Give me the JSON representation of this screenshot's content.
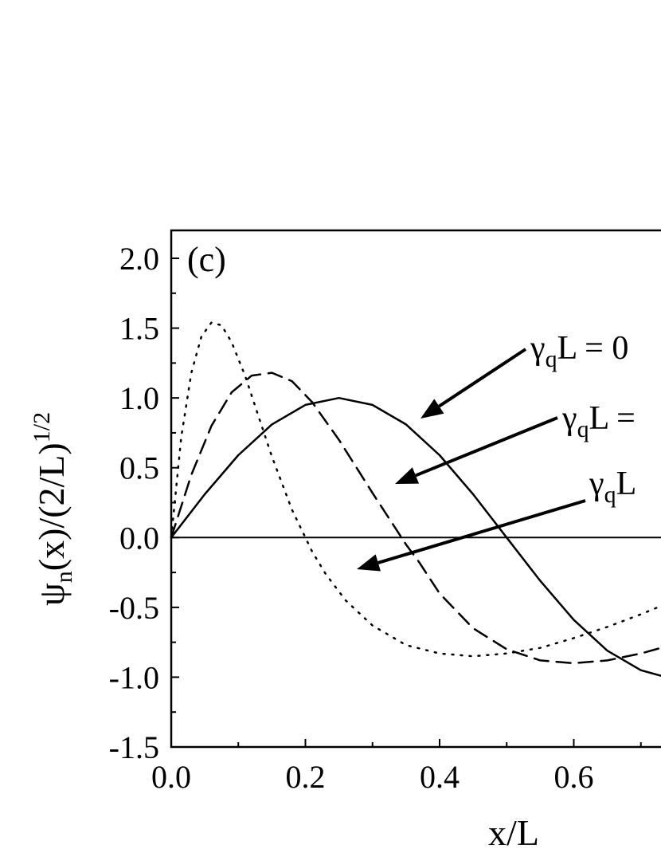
{
  "chart_data": {
    "type": "line",
    "panel_label": "(c)",
    "xlabel": "x/L",
    "ylabel": {
      "psi": "ψ",
      "sub": "n",
      "body": "(x)/(2/L)",
      "sup": "1/2"
    },
    "xlim": [
      0,
      0.73
    ],
    "ylim": [
      -1.5,
      2.2
    ],
    "x_ticks": [
      "0.0",
      "0.2",
      "0.4",
      "0.6"
    ],
    "y_ticks": [
      "-1.5",
      "-1.0",
      "-0.5",
      "0.0",
      "0.5",
      "1.0",
      "1.5",
      "2.0"
    ],
    "zero_line": true,
    "series": [
      {
        "style": "solid",
        "x": [
          0,
          0.05,
          0.1,
          0.15,
          0.2,
          0.25,
          0.3,
          0.35,
          0.4,
          0.45,
          0.5,
          0.55,
          0.6,
          0.65,
          0.7,
          0.73
        ],
        "y": [
          0,
          0.31,
          0.59,
          0.81,
          0.95,
          1.0,
          0.95,
          0.81,
          0.59,
          0.31,
          0.0,
          -0.31,
          -0.59,
          -0.81,
          -0.95,
          -0.99
        ]
      },
      {
        "style": "dashed",
        "x": [
          0,
          0.03,
          0.06,
          0.09,
          0.12,
          0.15,
          0.18,
          0.21,
          0.25,
          0.3,
          0.35,
          0.37,
          0.4,
          0.45,
          0.5,
          0.55,
          0.6,
          0.65,
          0.7,
          0.73
        ],
        "y": [
          0,
          0.45,
          0.8,
          1.04,
          1.16,
          1.18,
          1.12,
          0.97,
          0.7,
          0.32,
          -0.05,
          -0.18,
          -0.4,
          -0.65,
          -0.8,
          -0.88,
          -0.9,
          -0.88,
          -0.83,
          -0.79
        ]
      },
      {
        "style": "dotted",
        "x": [
          0,
          0.015,
          0.03,
          0.045,
          0.06,
          0.075,
          0.09,
          0.11,
          0.13,
          0.15,
          0.18,
          0.21,
          0.23,
          0.26,
          0.3,
          0.35,
          0.4,
          0.45,
          0.5,
          0.55,
          0.6,
          0.65,
          0.7,
          0.73
        ],
        "y": [
          0,
          0.72,
          1.18,
          1.44,
          1.54,
          1.52,
          1.4,
          1.16,
          0.87,
          0.58,
          0.2,
          -0.1,
          -0.26,
          -0.45,
          -0.63,
          -0.77,
          -0.83,
          -0.85,
          -0.83,
          -0.79,
          -0.72,
          -0.64,
          -0.55,
          -0.49
        ]
      }
    ],
    "annotations": [
      {
        "prefix": "γ",
        "sub": "q",
        "suffix": "L = 0",
        "target_series": 0
      },
      {
        "prefix": "γ",
        "sub": "q",
        "suffix": "L =",
        "target_series": 1
      },
      {
        "prefix": "γ",
        "sub": "q",
        "suffix": "L",
        "target_series": 2
      }
    ]
  }
}
